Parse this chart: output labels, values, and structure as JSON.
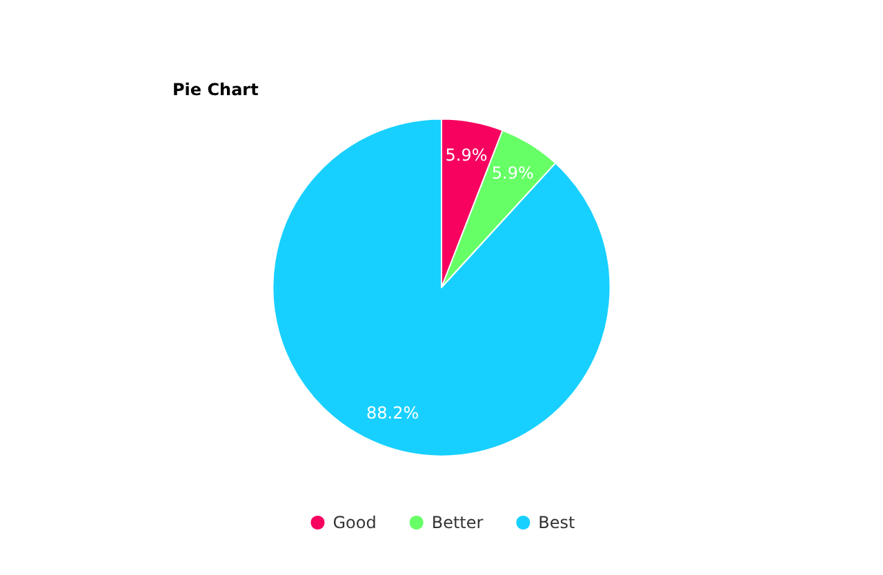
{
  "chart_data": {
    "type": "pie",
    "title": "Pie Chart",
    "categories": [
      "Good",
      "Better",
      "Best"
    ],
    "values": [
      5.9,
      5.9,
      88.2
    ],
    "colors": [
      "#f7035f",
      "#66ff66",
      "#18d0ff"
    ],
    "value_labels": [
      "5.9%",
      "5.9%",
      "88.2%"
    ],
    "legend": "bottom"
  }
}
